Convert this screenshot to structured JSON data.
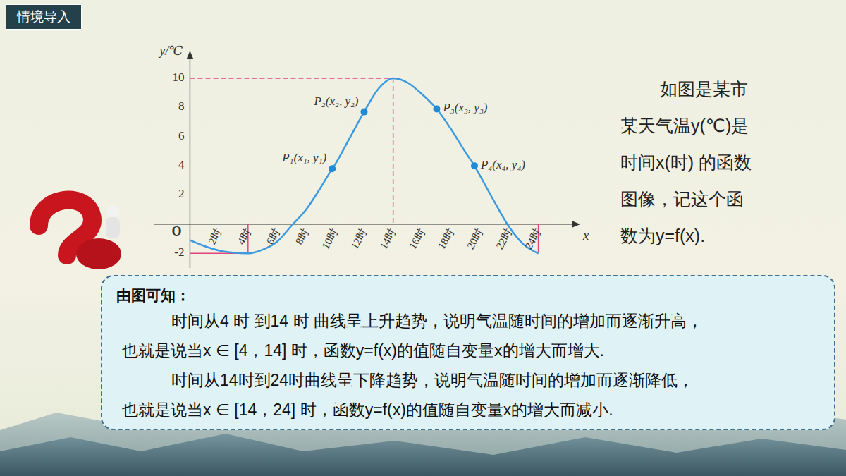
{
  "header": "情境导入",
  "side_text": [
    "如图是某市",
    "某天气温y(℃)是",
    "时间x(时) 的函数",
    "图像，记这个函",
    "数为y=f(x)."
  ],
  "box": {
    "title": "由图可知：",
    "paragraphs": [
      [
        "时间从4 时 到14 时 曲线呈上升趋势，说明气温随时间的增加而逐渐升高，",
        "也就是说当x ∈ [4，14] 时，函数y=f(x)的值随自变量x的增大而增大."
      ],
      [
        "时间从14时到24时曲线呈下降趋势，说明气温随时间的增加而逐渐降低，",
        "也就是说当x ∈ [14，24] 时，函数y=f(x)的值随自变量x的增大而减小."
      ]
    ]
  },
  "chart_data": {
    "type": "line",
    "x_label": "x",
    "y_label": "y/℃",
    "color": "#3c9be0",
    "x": [
      0,
      1,
      2,
      3,
      4,
      5,
      6,
      7,
      8,
      9,
      9.8,
      10,
      11,
      12,
      13,
      14,
      15,
      16,
      17,
      18,
      19,
      19.6,
      20,
      21,
      22,
      23,
      24
    ],
    "values": [
      -1.1,
      -1.5,
      -1.8,
      -1.95,
      -2,
      -1.75,
      -1.2,
      -0.1,
      1.0,
      2.5,
      3.8,
      4.1,
      5.9,
      7.7,
      9.3,
      10,
      9.7,
      8.9,
      7.9,
      6.5,
      4.9,
      4.0,
      3.3,
      1.5,
      -0.2,
      -1.4,
      -2
    ],
    "xlim": [
      -2.5,
      26.5
    ],
    "xticks": [
      {
        "value": 2,
        "label": "2时"
      },
      {
        "value": 4,
        "label": "4时"
      },
      {
        "value": 6,
        "label": "6时"
      },
      {
        "value": 8,
        "label": "8时"
      },
      {
        "value": 10,
        "label": "10时"
      },
      {
        "value": 12,
        "label": "12时"
      },
      {
        "value": 14,
        "label": "14时"
      },
      {
        "value": 16,
        "label": "16时"
      },
      {
        "value": 18,
        "label": "18时"
      },
      {
        "value": 20,
        "label": "20时"
      },
      {
        "value": 22,
        "label": "22时"
      },
      {
        "value": 24,
        "label": "24时"
      }
    ],
    "ylim": [
      -3,
      11.5
    ],
    "yticks": [
      -2,
      {
        "value": 0,
        "label": "O"
      },
      2,
      4,
      6,
      8,
      10
    ],
    "grid": false,
    "points": [
      {
        "label": "P₁(x₁, y₁)",
        "x": 9.8,
        "y": 3.8
      },
      {
        "label": "P₂(x₂, y₂)",
        "x": 12,
        "y": 7.7
      },
      {
        "label": "P₃(x₃, y₃)",
        "x": 17,
        "y": 7.9
      },
      {
        "label": "P₄(x₄, y₄)",
        "x": 19.6,
        "y": 4.0
      }
    ]
  }
}
